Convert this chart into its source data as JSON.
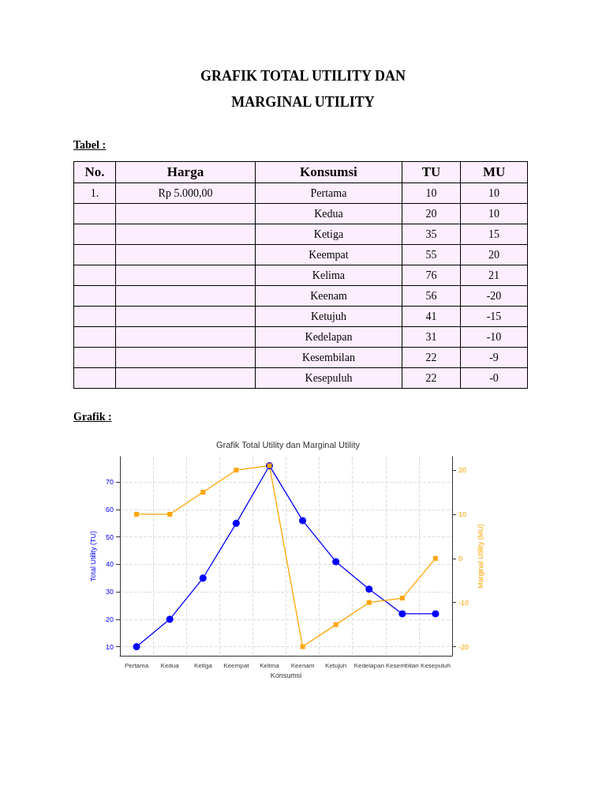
{
  "chart_data": [
    {
      "type": "other",
      "annotations": [
        "GRAFIK TOTAL UTILITY DAN MARGINAL UTILITY",
        "Tabel :",
        "No.",
        "Harga",
        "Konsumsi",
        "TU",
        "MU",
        "1.",
        "Rp 5.000,00",
        "Pertama",
        "10",
        "10",
        null,
        null,
        "Kedua",
        "20",
        "10",
        null,
        null,
        "Ketiga",
        "35",
        "15",
        null,
        null,
        "Keempat",
        "55",
        "20",
        null,
        null,
        "Kelima",
        "76",
        "21",
        null,
        null,
        "Keenam",
        "56",
        "-20",
        null,
        null,
        "Ketujuh",
        "41",
        "-15",
        null,
        null,
        "Kedelapan",
        "31",
        "-10",
        null,
        null,
        "Kesembilan",
        "22",
        "-9",
        null,
        null,
        "Kesepuluh",
        "22",
        "-0",
        "Grafik :"
      ]
    },
    {
      "type": "line",
      "title": "Grafik Total Utility dan Marginal Utility",
      "xlabel": "Konsumsi",
      "ylabel": "Total Utility (TU)",
      "y2label": "Marginal Utility (MU)",
      "categories": [
        "Pertama",
        "Kedua",
        "Ketiga",
        "Keempat",
        "Kelima",
        "Keenam",
        "Ketujuh",
        "Kedelapan",
        "Kesembilan",
        "Kesepuluh"
      ],
      "series": [
        {
          "color": "#0000ff",
          "marker": "circle",
          "values": [
            10,
            20,
            35,
            55,
            76,
            56,
            41,
            31,
            22,
            22
          ]
        },
        {
          "color": "#ffa500",
          "marker": "square",
          "axis": "y2",
          "values": [
            10,
            10,
            15,
            20,
            21,
            -20,
            -15,
            -10,
            -9,
            0
          ]
        }
      ],
      "ylim": [
        6.7,
        79.3
      ],
      "yticks": [
        10,
        20,
        30,
        40,
        50,
        60,
        70
      ],
      "y2lim": [
        -22.05,
        23.05
      ],
      "y2ticks": [
        -20,
        -10,
        0,
        10,
        20
      ],
      "grid": true
    }
  ]
}
